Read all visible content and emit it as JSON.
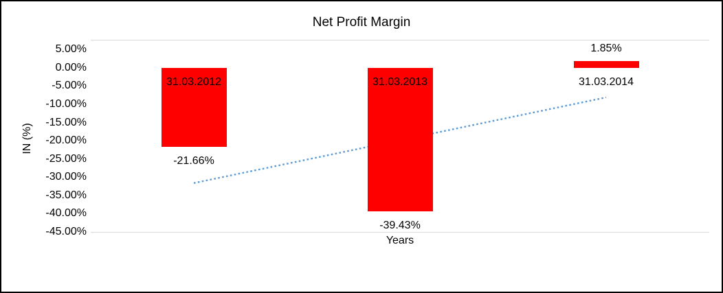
{
  "chart_data": {
    "type": "bar",
    "title": "Net Profit Margin",
    "xlabel": "Years",
    "ylabel": "IN (%)",
    "categories": [
      "31.03.2012",
      "31.03.2013",
      "31.03.2014"
    ],
    "values": [
      -21.66,
      -39.43,
      1.85
    ],
    "data_labels": [
      "-21.66%",
      "-39.43%",
      "1.85%"
    ],
    "ylim": [
      -45,
      5
    ],
    "ytick_values": [
      5,
      0,
      -5,
      -10,
      -15,
      -20,
      -25,
      -30,
      -35,
      -40,
      -45
    ],
    "ytick_labels": [
      "5.00%",
      "0.00%",
      "-5.00%",
      "-10.00%",
      "-15.00%",
      "-20.00%",
      "-25.00%",
      "-30.00%",
      "-35.00%",
      "-40.00%",
      "-45.00%"
    ],
    "bar_color": "#FF0000",
    "gridlines_visible": false,
    "legend": "none",
    "trendline": {
      "type": "linear",
      "style": "dotted",
      "color": "#5B9BD5",
      "start_value": -31.6,
      "end_value": -8.1
    }
  }
}
